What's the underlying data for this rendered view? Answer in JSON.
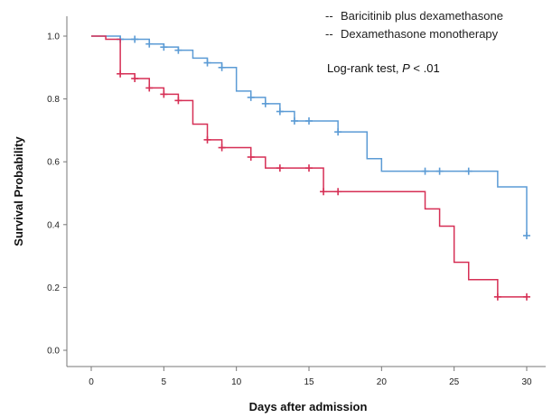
{
  "chart_data": {
    "type": "line",
    "subtype": "kaplan-meier-step",
    "xlabel": "Days after admission",
    "ylabel": "Survival Probability",
    "xlim": [
      0,
      30
    ],
    "ylim": [
      0.0,
      1.0
    ],
    "xticks": [
      "0",
      "5",
      "10",
      "15",
      "20",
      "25",
      "30"
    ],
    "yticks": [
      "0.0",
      "0.2",
      "0.4",
      "0.6",
      "0.8",
      "1.0"
    ],
    "grid": false,
    "legend_position": "top-right",
    "annotation": {
      "text": "Log-rank test, ",
      "p_symbol": "P",
      "p_value": " < .01"
    },
    "series": [
      {
        "name": "Baricitinib plus dexamethasone",
        "legend_marker": "--",
        "color": "#5b9bd5",
        "steps": [
          [
            0,
            1.0
          ],
          [
            2,
            0.99
          ],
          [
            4,
            0.975
          ],
          [
            5,
            0.965
          ],
          [
            6,
            0.955
          ],
          [
            7,
            0.93
          ],
          [
            8,
            0.915
          ],
          [
            9,
            0.9
          ],
          [
            10,
            0.825
          ],
          [
            11,
            0.805
          ],
          [
            12,
            0.785
          ],
          [
            13,
            0.76
          ],
          [
            14,
            0.73
          ],
          [
            17,
            0.695
          ],
          [
            19,
            0.61
          ],
          [
            20,
            0.57
          ],
          [
            28,
            0.52
          ],
          [
            30,
            0.365
          ]
        ],
        "end_x": 30,
        "censored": [
          2,
          3,
          4,
          5,
          6,
          8,
          9,
          11,
          12,
          13,
          14,
          15,
          17,
          23,
          24,
          26,
          30
        ]
      },
      {
        "name": "Dexamethasone monotherapy",
        "legend_marker": "--",
        "color": "#d62f55",
        "steps": [
          [
            0,
            1.0
          ],
          [
            1,
            0.99
          ],
          [
            2,
            0.88
          ],
          [
            3,
            0.865
          ],
          [
            4,
            0.835
          ],
          [
            5,
            0.815
          ],
          [
            6,
            0.795
          ],
          [
            7,
            0.72
          ],
          [
            8,
            0.67
          ],
          [
            9,
            0.645
          ],
          [
            11,
            0.615
          ],
          [
            12,
            0.58
          ],
          [
            16,
            0.505
          ],
          [
            23,
            0.45
          ],
          [
            24,
            0.395
          ],
          [
            25,
            0.28
          ],
          [
            26,
            0.225
          ],
          [
            28,
            0.17
          ]
        ],
        "end_x": 30,
        "censored": [
          2,
          3,
          4,
          5,
          6,
          8,
          9,
          11,
          13,
          15,
          16,
          17,
          28,
          30
        ]
      }
    ]
  }
}
